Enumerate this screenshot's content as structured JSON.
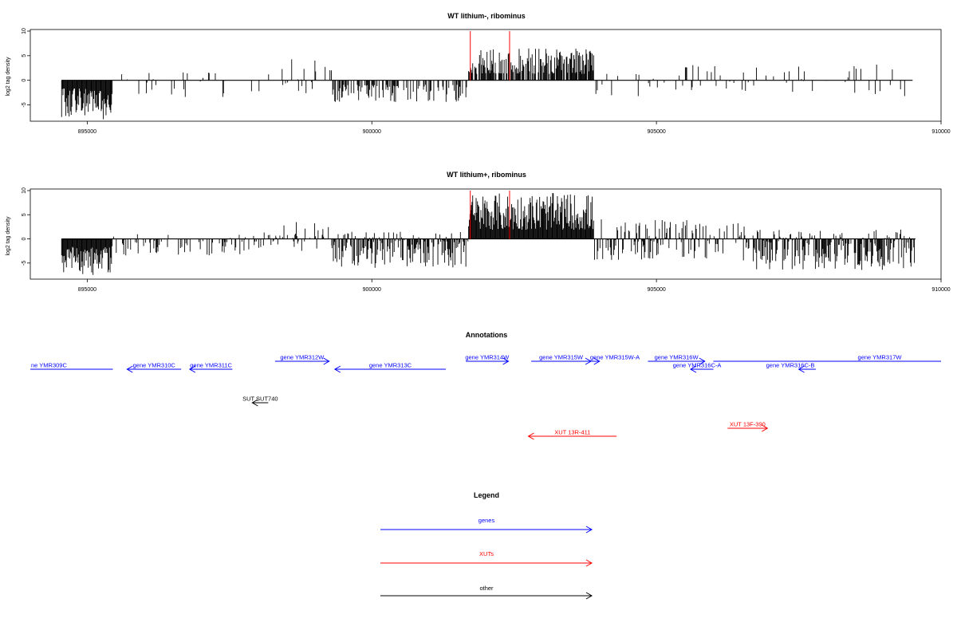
{
  "chart_data": [
    {
      "type": "bar",
      "title": "WT lithium-, ribominus",
      "ylabel": "log2 tag density",
      "xlim": [
        894000,
        910000
      ],
      "ylim": [
        -8,
        10
      ],
      "x_ticks": [
        895000,
        900000,
        905000,
        910000
      ],
      "y_ticks": [
        -5,
        0,
        5,
        10
      ],
      "x_tick_labels": [
        "895000",
        "900000",
        "905000",
        "910000"
      ],
      "y_tick_labels": [
        "-5",
        "0",
        "5",
        "10"
      ],
      "red_markers": [
        {
          "x": 901730,
          "y": 10
        },
        {
          "x": 902420,
          "y": 10
        }
      ],
      "segments": [
        {
          "from": 894550,
          "to": 895450,
          "density": 1.0,
          "min": -8.0,
          "max": 0.0
        },
        {
          "from": 895450,
          "to": 898400,
          "density": 0.12,
          "min": -3.5,
          "max": 1.6
        },
        {
          "from": 898400,
          "to": 899300,
          "density": 0.3,
          "min": -3.0,
          "max": 4.3
        },
        {
          "from": 899300,
          "to": 901700,
          "density": 0.45,
          "min": -4.5,
          "max": 0.0
        },
        {
          "from": 901700,
          "to": 903900,
          "density": 0.8,
          "min": 0.0,
          "max": 6.5
        },
        {
          "from": 903900,
          "to": 909500,
          "density": 0.16,
          "min": -3.5,
          "max": 3.2
        }
      ]
    },
    {
      "type": "bar",
      "title": "WT lithium+, ribominus",
      "ylabel": "log2 tag density",
      "xlim": [
        894000,
        910000
      ],
      "ylim": [
        -8,
        10
      ],
      "x_ticks": [
        895000,
        900000,
        905000,
        910000
      ],
      "y_ticks": [
        -5,
        0,
        5,
        10
      ],
      "x_tick_labels": [
        "895000",
        "900000",
        "905000",
        "910000"
      ],
      "y_tick_labels": [
        "-5",
        "0",
        "5",
        "10"
      ],
      "red_markers": [
        {
          "x": 901730,
          "y": 10
        },
        {
          "x": 902420,
          "y": 10
        }
      ],
      "segments": [
        {
          "from": 894550,
          "to": 895450,
          "density": 1.0,
          "min": -7.5,
          "max": 0.0
        },
        {
          "from": 895450,
          "to": 898000,
          "density": 0.3,
          "min": -3.5,
          "max": 1.0
        },
        {
          "from": 898000,
          "to": 899300,
          "density": 0.35,
          "min": -2.5,
          "max": 3.5
        },
        {
          "from": 899300,
          "to": 901700,
          "density": 0.75,
          "min": -6.0,
          "max": 1.5
        },
        {
          "from": 901700,
          "to": 903900,
          "density": 1.0,
          "min": 0.0,
          "max": 9.5
        },
        {
          "from": 903900,
          "to": 906700,
          "density": 0.55,
          "min": -4.5,
          "max": 4.5
        },
        {
          "from": 906700,
          "to": 909550,
          "density": 0.85,
          "min": -6.5,
          "max": 2.0
        }
      ]
    }
  ],
  "annotations": {
    "title": "Annotations",
    "features": [
      {
        "label": "ne YMR309C",
        "start": 894000,
        "end": 895450,
        "strand": "-",
        "color": "#0000ff",
        "row": 1,
        "arrow": false
      },
      {
        "label": "gene YMR310C",
        "start": 895700,
        "end": 896650,
        "strand": "-",
        "color": "#0000ff",
        "row": 1,
        "arrow": true
      },
      {
        "label": "gene YMR311C",
        "start": 896800,
        "end": 897550,
        "strand": "-",
        "color": "#0000ff",
        "row": 1,
        "arrow": true
      },
      {
        "label": "gene YMR312W",
        "start": 898300,
        "end": 899250,
        "strand": "+",
        "color": "#0000ff",
        "row": 0,
        "arrow": true
      },
      {
        "label": "gene YMR313C",
        "start": 899350,
        "end": 901300,
        "strand": "-",
        "color": "#0000ff",
        "row": 1,
        "arrow": true
      },
      {
        "label": "gene YMR314W",
        "start": 901650,
        "end": 902400,
        "strand": "+",
        "color": "#0000ff",
        "row": 0,
        "arrow": true
      },
      {
        "label": "gene YMR315W",
        "start": 902800,
        "end": 903850,
        "strand": "+",
        "color": "#0000ff",
        "row": 0,
        "arrow": true
      },
      {
        "label": "gene YMR315W-A",
        "start": 903850,
        "end": 904000,
        "strand": "+",
        "color": "#0000ff",
        "row": 0,
        "arrow": true
      },
      {
        "label": "gene YMR316W",
        "start": 904850,
        "end": 905850,
        "strand": "+",
        "color": "#0000ff",
        "row": 0,
        "arrow": true
      },
      {
        "label": "gene YMR316C-A",
        "start": 905600,
        "end": 906000,
        "strand": "-",
        "color": "#0000ff",
        "row": 1,
        "arrow": true
      },
      {
        "label": "gene YMR316C-B",
        "start": 907500,
        "end": 907800,
        "strand": "-",
        "color": "#0000ff",
        "row": 1,
        "arrow": true
      },
      {
        "label": "gene YMR317W",
        "start": 906000,
        "end": 910000,
        "strand": "+",
        "color": "#0000ff",
        "row": 0,
        "arrow": false
      },
      {
        "label": "SUT SUT740",
        "start": 897900,
        "end": 898180,
        "strand": "-",
        "color": "#000000",
        "row": 3,
        "arrow": true
      },
      {
        "label": "XUT 13R-411",
        "start": 902750,
        "end": 904300,
        "strand": "-",
        "color": "#ff0000",
        "row": 5,
        "arrow": true
      },
      {
        "label": "XUT 13F-390",
        "start": 906250,
        "end": 906950,
        "strand": "+",
        "color": "#ff0000",
        "row": 4,
        "arrow": true
      }
    ]
  },
  "legend": {
    "title": "Legend",
    "items": [
      {
        "label": "genes",
        "color": "#0000ff"
      },
      {
        "label": "XUTs",
        "color": "#ff0000"
      },
      {
        "label": "other",
        "color": "#000000"
      }
    ]
  }
}
